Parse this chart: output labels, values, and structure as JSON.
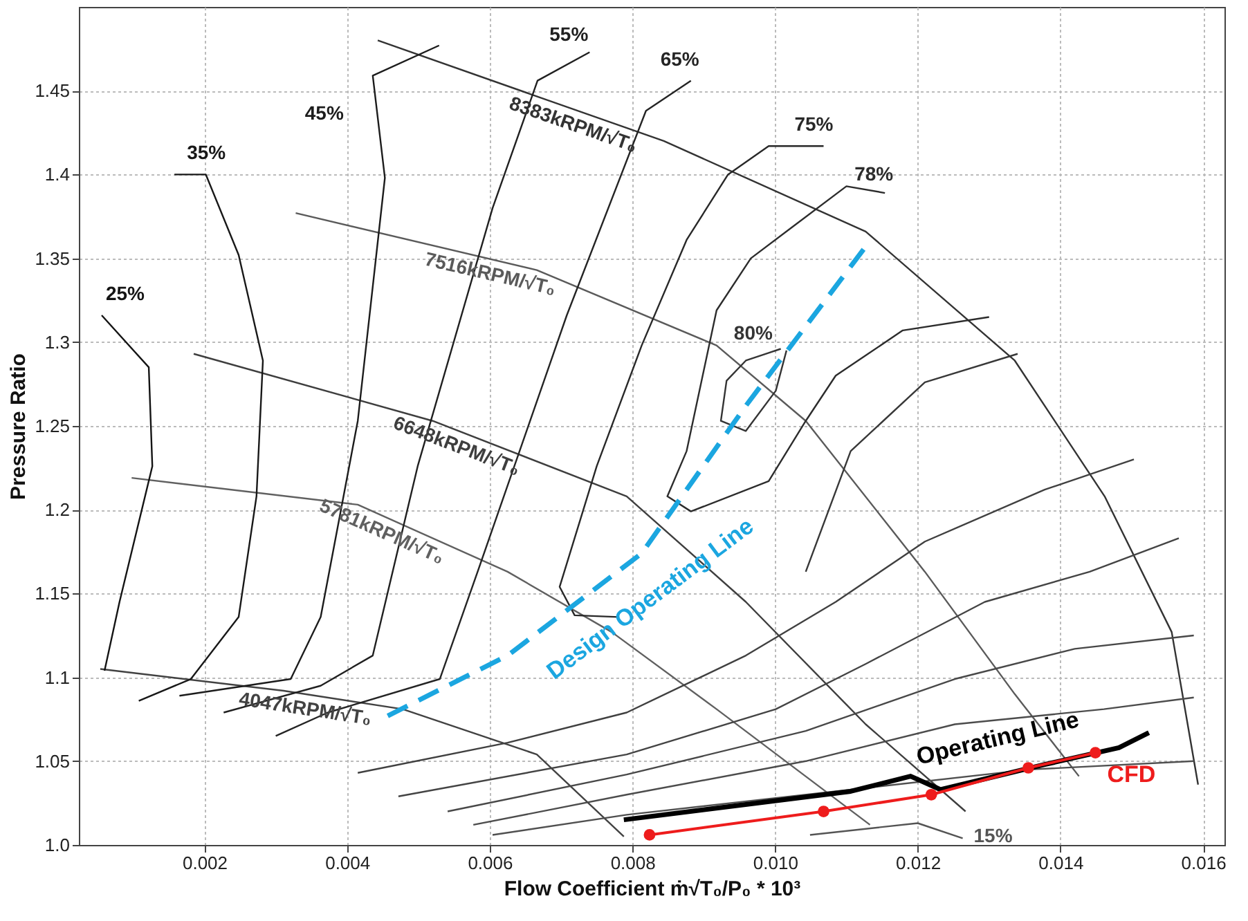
{
  "chart_data": {
    "type": "line",
    "xlabel": "Flow Coefficient ṁ√T₀/P₀ * 10³",
    "ylabel": "Pressure Ratio",
    "xlim": [
      0.00024,
      0.0163
    ],
    "ylim": [
      1.0,
      1.5
    ],
    "xticks": [
      0.002,
      0.004,
      0.006,
      0.008,
      {
        "value": 0.01,
        "label": "0.010"
      },
      0.012,
      0.014,
      0.016
    ],
    "yticks": [
      {
        "value": 1.0,
        "label": "1.0"
      },
      1.05,
      1.1,
      1.15,
      1.2,
      1.25,
      1.3,
      1.35,
      1.4,
      1.45
    ],
    "grid": true,
    "marker": "none",
    "line_style": "solid",
    "series": [
      {
        "name": "8383kRPM/√T₀",
        "color": "#333333",
        "x": [
          0.00443,
          0.00844,
          0.01127,
          0.01336,
          0.01462,
          0.01556,
          0.01593
        ],
        "values": [
          1.48,
          1.42,
          1.366,
          1.289,
          1.208,
          1.127,
          1.036
        ]
      },
      {
        "name": "7516kRPM/√T₀",
        "color": "#5a5a5a",
        "x": [
          0.00328,
          0.00666,
          0.00918,
          0.01043,
          0.0121,
          0.01336,
          0.01426
        ],
        "values": [
          1.377,
          1.343,
          1.298,
          1.253,
          1.163,
          1.09,
          1.041
        ]
      },
      {
        "name": "6648kRPM/√T₀",
        "color": "#3e3e3e",
        "x": [
          0.00185,
          0.0052,
          0.00792,
          0.00959,
          0.01127,
          0.01267
        ],
        "values": [
          1.293,
          1.253,
          1.208,
          1.145,
          1.072,
          1.02
        ]
      },
      {
        "name": "5781kRPM/√T₀",
        "color": "#606060",
        "x": [
          0.00098,
          0.00415,
          0.00625,
          0.00771,
          0.00918,
          0.01133
        ],
        "values": [
          1.219,
          1.203,
          1.163,
          1.127,
          1.081,
          1.012
        ]
      },
      {
        "name": "4047kRPM/√T₀",
        "color": "#424242",
        "x": [
          0.00054,
          0.00311,
          0.00478,
          0.00666,
          0.00788
        ],
        "values": [
          1.105,
          1.092,
          1.081,
          1.054,
          1.005
        ]
      },
      {
        "name": "25%",
        "color": "#141414",
        "x": [
          0.00056,
          0.00122,
          0.00127,
          0.00081,
          0.0006
        ],
        "values": [
          1.316,
          1.285,
          1.226,
          1.145,
          1.104
        ]
      },
      {
        "name": "35%",
        "color": "#181818",
        "x": [
          0.00158,
          0.00202,
          0.00248,
          0.00282,
          0.00273,
          0.00248,
          0.00181,
          0.00108
        ],
        "values": [
          1.4,
          1.4,
          1.352,
          1.289,
          1.208,
          1.136,
          1.099,
          1.086
        ]
      },
      {
        "name": "45%",
        "color": "#1c1c1c",
        "x": [
          0.00529,
          0.00436,
          0.00453,
          0.00415,
          0.00363,
          0.00321,
          0.00165
        ],
        "values": [
          1.477,
          1.459,
          1.398,
          1.253,
          1.136,
          1.099,
          1.089
        ]
      },
      {
        "name": "55%",
        "color": "#202020",
        "x": [
          0.0074,
          0.00667,
          0.00604,
          0.00499,
          0.00436,
          0.00363,
          0.00227
        ],
        "values": [
          1.473,
          1.456,
          1.38,
          1.226,
          1.113,
          1.095,
          1.079
        ]
      },
      {
        "name": "65%",
        "color": "#242424",
        "x": [
          0.00882,
          0.00819,
          0.00708,
          0.00583,
          0.0053,
          0.00373,
          0.003
        ],
        "values": [
          1.456,
          1.438,
          1.316,
          1.163,
          1.099,
          1.079,
          1.065
        ]
      },
      {
        "name": "75%",
        "color": "#282828",
        "x": [
          0.01068,
          0.00991,
          0.00934,
          0.00876,
          0.00813,
          0.0075,
          0.00698,
          0.00719,
          0.00781
        ],
        "values": [
          1.417,
          1.417,
          1.4,
          1.361,
          1.298,
          1.226,
          1.154,
          1.137,
          1.136
        ]
      },
      {
        "name": "78%",
        "color": "#2c2c2c",
        "x": [
          0.01154,
          0.011,
          0.01022,
          0.00966,
          0.00918,
          0.00876,
          0.00849,
          0.00882,
          0.00991,
          0.01043,
          0.01085,
          0.01179,
          0.013
        ],
        "values": [
          1.389,
          1.393,
          1.368,
          1.35,
          1.319,
          1.235,
          1.208,
          1.199,
          1.217,
          1.253,
          1.28,
          1.307,
          1.315
        ]
      },
      {
        "name": "80%",
        "color": "#343434",
        "x": [
          0.01016,
          0.01001,
          0.00959,
          0.00924,
          0.00932,
          0.00959,
          0.01008
        ],
        "values": [
          1.295,
          1.271,
          1.247,
          1.253,
          1.277,
          1.289,
          1.296
        ]
      },
      {
        "color": "#383838",
        "x": [
          0.01043,
          0.01106,
          0.0121,
          0.0134
        ],
        "values": [
          1.163,
          1.235,
          1.276,
          1.293
        ]
      },
      {
        "color": "#404040",
        "x": [
          0.00415,
          0.00625,
          0.00792,
          0.00959,
          0.01085,
          0.0121,
          0.01378,
          0.01503
        ],
        "values": [
          1.043,
          1.061,
          1.079,
          1.113,
          1.145,
          1.181,
          1.212,
          1.23
        ]
      },
      {
        "color": "#444444",
        "x": [
          0.00472,
          0.00792,
          0.01001,
          0.01127,
          0.01294,
          0.01441,
          0.01566
        ],
        "values": [
          1.029,
          1.054,
          1.081,
          1.108,
          1.145,
          1.163,
          1.183
        ]
      },
      {
        "color": "#484848",
        "x": [
          0.00541,
          0.00792,
          0.01043,
          0.01252,
          0.0142,
          0.01587
        ],
        "values": [
          1.02,
          1.042,
          1.068,
          1.099,
          1.117,
          1.125
        ]
      },
      {
        "color": "#4c4c4c",
        "x": [
          0.00577,
          0.00792,
          0.01043,
          0.01252,
          0.01461,
          0.01587
        ],
        "values": [
          1.012,
          1.03,
          1.05,
          1.072,
          1.081,
          1.088
        ]
      },
      {
        "color": "#505050",
        "x": [
          0.00604,
          0.00792,
          0.01085,
          0.01357,
          0.01587
        ],
        "values": [
          1.006,
          1.018,
          1.032,
          1.045,
          1.05
        ]
      },
      {
        "name": "15%",
        "color": "#545454",
        "x": [
          0.01049,
          0.012,
          0.01263
        ],
        "values": [
          1.006,
          1.013,
          1.004
        ]
      },
      {
        "name": "Design Operating Line",
        "color": "#1ba6e0",
        "line_style": "dashed",
        "x": [
          0.00457,
          0.00625,
          0.00813,
          0.00959,
          0.01127
        ],
        "values": [
          1.077,
          1.113,
          1.174,
          1.262,
          1.357
        ]
      },
      {
        "name": "Operating Line",
        "color": "#000000",
        "x": [
          0.00788,
          0.01106,
          0.0119,
          0.01232,
          0.01378,
          0.01482,
          0.01524
        ],
        "values": [
          1.015,
          1.032,
          1.041,
          1.033,
          1.048,
          1.058,
          1.067
        ]
      },
      {
        "name": "CFD",
        "color": "#ee1c1c",
        "marker": "circle",
        "x": [
          0.00824,
          0.01068,
          0.01219,
          0.01355,
          0.01449
        ],
        "values": [
          1.006,
          1.02,
          1.03,
          1.046,
          1.055
        ]
      }
    ]
  }
}
